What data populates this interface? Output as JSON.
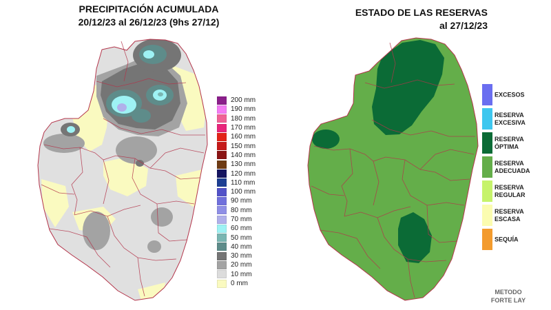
{
  "left_map": {
    "title_line1": "PRECIPITACIÓN ACUMULADA",
    "title_line2": "20/12/23 al 26/12/23 (9hs 27/12)",
    "legend": [
      {
        "label": "200 mm",
        "color": "#8b1f8b"
      },
      {
        "label": "190 mm",
        "color": "#f47cf4"
      },
      {
        "label": "180 mm",
        "color": "#f06296"
      },
      {
        "label": "170 mm",
        "color": "#e8257b"
      },
      {
        "label": "160 mm",
        "color": "#e32318"
      },
      {
        "label": "150 mm",
        "color": "#c61a1a"
      },
      {
        "label": "140 mm",
        "color": "#8b1414"
      },
      {
        "label": "130 mm",
        "color": "#6e3b14"
      },
      {
        "label": "120 mm",
        "color": "#151560"
      },
      {
        "label": "110 mm",
        "color": "#1d3f93"
      },
      {
        "label": "100 mm",
        "color": "#5252c8"
      },
      {
        "label": "90 mm",
        "color": "#7070dc"
      },
      {
        "label": "80 mm",
        "color": "#8f8fe6"
      },
      {
        "label": "70 mm",
        "color": "#b0b0ea"
      },
      {
        "label": "60 mm",
        "color": "#9ef2f4"
      },
      {
        "label": "50 mm",
        "color": "#7ab6b2"
      },
      {
        "label": "40 mm",
        "color": "#5e8c8a"
      },
      {
        "label": "30 mm",
        "color": "#757575"
      },
      {
        "label": "20 mm",
        "color": "#a3a3a3"
      },
      {
        "label": "10 mm",
        "color": "#dcdcdc"
      },
      {
        "label": "0 mm",
        "color": "#fafac0"
      }
    ]
  },
  "right_map": {
    "title_line1": "ESTADO DE LAS RESERVAS",
    "title_line2": "al 27/12/23",
    "legend": [
      {
        "line1": "EXCESOS",
        "line2": "",
        "color": "#6a6ef0"
      },
      {
        "line1": "RESERVA",
        "line2": "EXCESIVA",
        "color": "#3ec7ef"
      },
      {
        "line1": "RESERVA",
        "line2": "ÓPTIMA",
        "color": "#0b6b36"
      },
      {
        "line1": "RESERVA",
        "line2": "ADECUADA",
        "color": "#64ae4a"
      },
      {
        "line1": "RESERVA",
        "line2": "REGULAR",
        "color": "#c6f36b"
      },
      {
        "line1": "RESERVA",
        "line2": "ESCASA",
        "color": "#fbfcb0"
      },
      {
        "line1": "SEQUÍA",
        "line2": "",
        "color": "#f39b2e"
      }
    ],
    "method_line1": "METODO",
    "method_line2": "FORTE LAY"
  }
}
